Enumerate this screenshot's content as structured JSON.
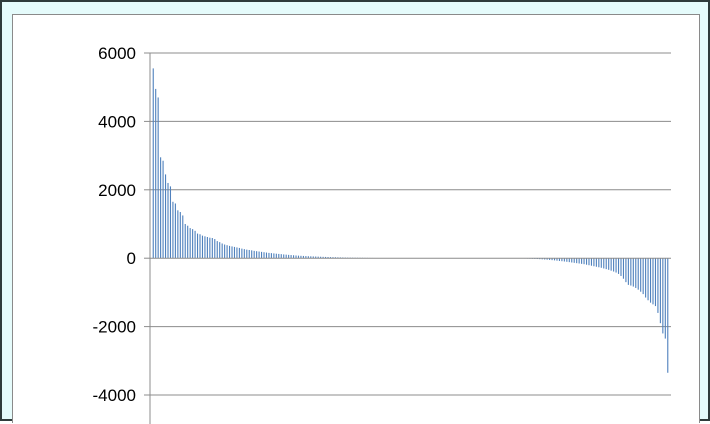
{
  "chart_data": {
    "type": "bar",
    "title": "",
    "xlabel": "",
    "ylabel": "",
    "ylim": [
      -4000,
      6000
    ],
    "yticks": [
      {
        "value": 6000,
        "label": "6000"
      },
      {
        "value": 4000,
        "label": "4000"
      },
      {
        "value": 2000,
        "label": "2000"
      },
      {
        "value": 0,
        "label": "0"
      },
      {
        "value": -2000,
        "label": "-2000"
      },
      {
        "value": -4000,
        "label": "-4000"
      }
    ],
    "grid": true,
    "legend": "none",
    "bar_color": "#4f81bd",
    "values": [
      5550,
      4950,
      4700,
      2950,
      2850,
      2450,
      2200,
      2100,
      1650,
      1600,
      1400,
      1350,
      1250,
      1000,
      950,
      880,
      850,
      800,
      720,
      700,
      660,
      640,
      620,
      600,
      590,
      560,
      500,
      470,
      430,
      400,
      380,
      360,
      345,
      330,
      315,
      300,
      280,
      265,
      250,
      240,
      230,
      215,
      205,
      195,
      185,
      175,
      165,
      155,
      148,
      140,
      132,
      125,
      118,
      110,
      104,
      98,
      92,
      86,
      80,
      75,
      70,
      66,
      62,
      58,
      55,
      52,
      49,
      46,
      43,
      40,
      37,
      35,
      32,
      30,
      28,
      26,
      24,
      22,
      20,
      18,
      17,
      15,
      14,
      13,
      12,
      11,
      10,
      9,
      8,
      7,
      6,
      6,
      5,
      5,
      4,
      4,
      3,
      3,
      3,
      2,
      2,
      2,
      2,
      1,
      1,
      1,
      1,
      1,
      1,
      1,
      0,
      0,
      0,
      0,
      0,
      0,
      0,
      0,
      0,
      0,
      0,
      0,
      0,
      0,
      0,
      0,
      0,
      0,
      0,
      0,
      0,
      0,
      0,
      0,
      0,
      0,
      0,
      0,
      0,
      0,
      -1,
      -1,
      -1,
      -2,
      -2,
      -3,
      -3,
      -4,
      -5,
      -6,
      -8,
      -10,
      -12,
      -14,
      -17,
      -20,
      -24,
      -28,
      -33,
      -38,
      -44,
      -50,
      -57,
      -64,
      -72,
      -80,
      -88,
      -96,
      -105,
      -115,
      -125,
      -135,
      -145,
      -155,
      -165,
      -175,
      -190,
      -205,
      -220,
      -235,
      -250,
      -265,
      -280,
      -300,
      -320,
      -340,
      -365,
      -390,
      -420,
      -460,
      -520,
      -600,
      -700,
      -780,
      -800,
      -830,
      -870,
      -920,
      -980,
      -1050,
      -1150,
      -1230,
      -1300,
      -1350,
      -1400,
      -1600,
      -1900,
      -2200,
      -2350,
      -3350
    ]
  }
}
